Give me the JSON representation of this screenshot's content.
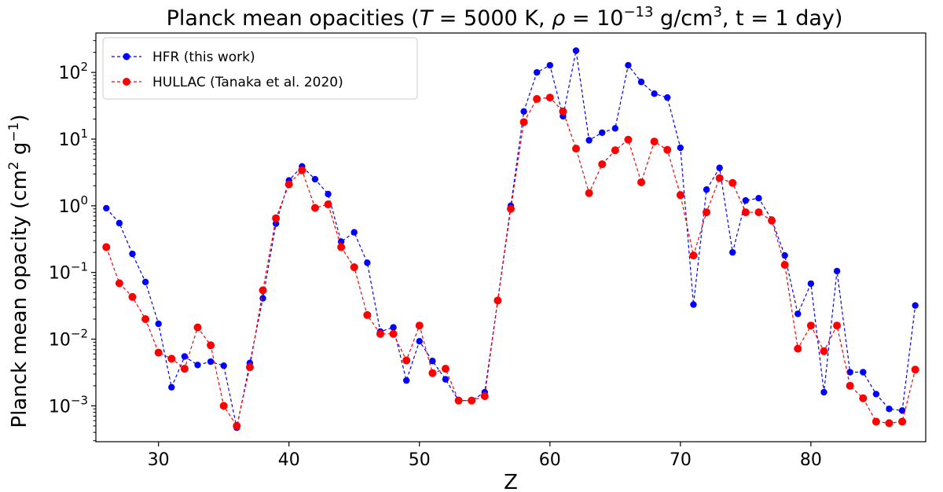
{
  "chart_data": {
    "type": "line",
    "title_prefix": "Planck mean opacities (",
    "title_T": "T",
    "title_eq1": " = 5000 K, ",
    "title_rho": "ρ",
    "title_eq2": " = 10",
    "title_rho_exp": "−13",
    "title_unit": " g/cm",
    "title_unit_exp": "3",
    "title_suffix": ", t = 1 day)",
    "xlabel": "Z",
    "ylabel_main": "Planck mean opacity (cm",
    "ylabel_exp1": "2",
    "ylabel_mid": " g",
    "ylabel_exp2": "−1",
    "ylabel_end": ")",
    "xlim": [
      25.2,
      88.8
    ],
    "ylim": [
      0.00029,
      390
    ],
    "yscale": "log",
    "xticks": [
      30,
      40,
      50,
      60,
      70,
      80
    ],
    "xtick_labels": [
      "30",
      "40",
      "50",
      "60",
      "70",
      "80"
    ],
    "yticks": [
      {
        "value": 0.001,
        "base": "10",
        "exp": "−3"
      },
      {
        "value": 0.01,
        "base": "10",
        "exp": "−2"
      },
      {
        "value": 0.1,
        "base": "10",
        "exp": "−1"
      },
      {
        "value": 1,
        "base": "10",
        "exp": "0"
      },
      {
        "value": 10,
        "base": "10",
        "exp": "1"
      },
      {
        "value": 100,
        "base": "10",
        "exp": "2"
      }
    ],
    "grid": false,
    "legend_position": "top-left",
    "x": [
      26,
      27,
      28,
      29,
      30,
      31,
      32,
      33,
      34,
      35,
      36,
      37,
      38,
      39,
      40,
      41,
      42,
      43,
      44,
      45,
      46,
      47,
      48,
      49,
      50,
      51,
      52,
      53,
      54,
      55,
      56,
      57,
      58,
      59,
      60,
      61,
      62,
      63,
      64,
      65,
      66,
      67,
      68,
      69,
      70,
      71,
      72,
      73,
      74,
      75,
      76,
      77,
      78,
      79,
      80,
      81,
      82,
      83,
      84,
      85,
      86,
      87,
      88
    ],
    "series": [
      {
        "name": "HFR (this work)",
        "color": "#0000ff",
        "values": [
          0.92,
          0.55,
          0.19,
          0.072,
          0.017,
          0.0019,
          0.0055,
          0.0041,
          0.0046,
          0.004,
          0.00047,
          0.0044,
          0.041,
          0.54,
          2.4,
          3.9,
          2.5,
          1.5,
          0.29,
          0.4,
          0.14,
          0.013,
          0.015,
          0.0024,
          0.0093,
          0.0047,
          0.0025,
          0.0012,
          0.0012,
          0.0016,
          0.038,
          1.0,
          26,
          100,
          128,
          22,
          212,
          9.6,
          12.5,
          14.5,
          128,
          72,
          48,
          42,
          7.4,
          0.033,
          1.75,
          3.7,
          0.2,
          1.2,
          1.3,
          0.62,
          0.18,
          0.024,
          0.068,
          0.0016,
          0.105,
          0.0032,
          0.0032,
          0.0015,
          0.0009,
          0.00085,
          0.032
        ]
      },
      {
        "name": "HULLAC (Tanaka et al. 2020)",
        "color": "#ff0000",
        "values": [
          0.24,
          0.069,
          0.043,
          0.02,
          0.0063,
          0.0051,
          0.0036,
          0.015,
          0.0081,
          0.001,
          0.0005,
          0.0038,
          0.054,
          0.65,
          2.1,
          3.4,
          0.93,
          1.05,
          0.24,
          0.12,
          0.023,
          0.012,
          0.012,
          0.0048,
          0.016,
          0.0031,
          0.0036,
          0.0012,
          0.0012,
          0.0014,
          0.038,
          0.9,
          18,
          40,
          42,
          26,
          7.2,
          1.55,
          4.2,
          6.8,
          9.8,
          2.25,
          9.2,
          6.9,
          1.45,
          0.18,
          0.8,
          2.6,
          2.2,
          0.8,
          0.8,
          0.6,
          0.13,
          0.0072,
          0.016,
          0.0066,
          0.016,
          0.002,
          0.0013,
          0.00058,
          0.00055,
          0.00058,
          0.0035
        ]
      }
    ]
  }
}
